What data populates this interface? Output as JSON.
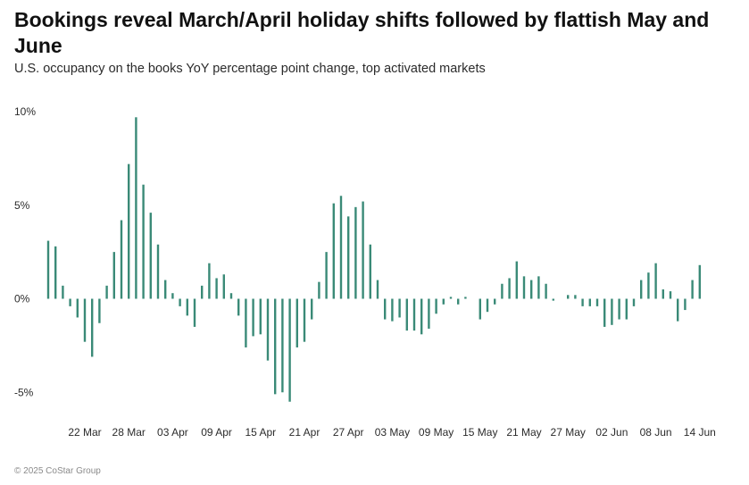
{
  "header": {
    "title": "Bookings reveal March/April holiday shifts followed by flattish May and June",
    "subtitle": "U.S. occupancy on the books YoY percentage point change, top activated markets"
  },
  "footer": {
    "copyright": "© 2025 CoStar Group"
  },
  "colors": {
    "bar": "#3a8a77",
    "text": "#2b2b2b"
  },
  "chart_data": {
    "type": "bar",
    "title": "Bookings reveal March/April holiday shifts followed by flattish May and June",
    "subtitle": "U.S. occupancy on the books YoY percentage point change, top activated markets",
    "xlabel": "",
    "ylabel": "",
    "ylim": [
      -5.8,
      10
    ],
    "yticks": [
      10,
      5,
      0,
      -5
    ],
    "ytick_labels": [
      "10%",
      "5%",
      "0%",
      "-5%"
    ],
    "grid": false,
    "legend": "none",
    "xtick_labels": [
      "22 Mar",
      "28 Mar",
      "03 Apr",
      "09 Apr",
      "15 Apr",
      "21 Apr",
      "27 Apr",
      "03 May",
      "09 May",
      "15 May",
      "21 May",
      "27 May",
      "02 Jun",
      "08 Jun",
      "14 Jun"
    ],
    "xtick_index": [
      5,
      11,
      17,
      23,
      29,
      35,
      41,
      47,
      53,
      59,
      65,
      71,
      77,
      83,
      89
    ],
    "first_date": "2025-03-17",
    "categories": [
      "17 Mar",
      "18 Mar",
      "19 Mar",
      "20 Mar",
      "21 Mar",
      "22 Mar",
      "23 Mar",
      "24 Mar",
      "25 Mar",
      "26 Mar",
      "27 Mar",
      "28 Mar",
      "29 Mar",
      "30 Mar",
      "31 Mar",
      "01 Apr",
      "02 Apr",
      "03 Apr",
      "04 Apr",
      "05 Apr",
      "06 Apr",
      "07 Apr",
      "08 Apr",
      "09 Apr",
      "10 Apr",
      "11 Apr",
      "12 Apr",
      "13 Apr",
      "14 Apr",
      "15 Apr",
      "16 Apr",
      "17 Apr",
      "18 Apr",
      "19 Apr",
      "20 Apr",
      "21 Apr",
      "22 Apr",
      "23 Apr",
      "24 Apr",
      "25 Apr",
      "26 Apr",
      "27 Apr",
      "28 Apr",
      "29 Apr",
      "30 Apr",
      "01 May",
      "02 May",
      "03 May",
      "04 May",
      "05 May",
      "06 May",
      "07 May",
      "08 May",
      "09 May",
      "10 May",
      "11 May",
      "12 May",
      "13 May",
      "14 May",
      "15 May",
      "16 May",
      "17 May",
      "18 May",
      "19 May",
      "20 May",
      "21 May",
      "22 May",
      "23 May",
      "24 May",
      "25 May",
      "26 May",
      "27 May",
      "28 May",
      "29 May",
      "30 May",
      "31 May",
      "01 Jun",
      "02 Jun",
      "03 Jun",
      "04 Jun",
      "05 Jun",
      "06 Jun",
      "07 Jun",
      "08 Jun",
      "09 Jun",
      "10 Jun",
      "11 Jun",
      "12 Jun",
      "13 Jun",
      "14 Jun"
    ],
    "values": [
      3.1,
      2.8,
      0.7,
      -0.4,
      -1.0,
      -2.3,
      -3.1,
      -1.3,
      0.7,
      2.5,
      4.2,
      7.2,
      9.7,
      6.1,
      4.6,
      2.9,
      1.0,
      0.3,
      -0.4,
      -0.9,
      -1.5,
      0.7,
      1.9,
      1.1,
      1.3,
      0.3,
      -0.9,
      -2.6,
      -2.0,
      -1.9,
      -3.3,
      -5.1,
      -5.0,
      -5.5,
      -2.6,
      -2.3,
      -1.1,
      0.9,
      2.5,
      5.1,
      5.5,
      4.4,
      4.9,
      5.2,
      2.9,
      1.0,
      -1.1,
      -1.2,
      -1.0,
      -1.7,
      -1.7,
      -1.9,
      -1.6,
      -0.8,
      -0.3,
      0.1,
      -0.3,
      0.1,
      0.0,
      -1.1,
      -0.7,
      -0.3,
      0.8,
      1.1,
      2.0,
      1.2,
      1.0,
      1.2,
      0.8,
      -0.1,
      0.0,
      0.2,
      0.2,
      -0.4,
      -0.4,
      -0.4,
      -1.5,
      -1.4,
      -1.1,
      -1.1,
      -0.4,
      1.0,
      1.4,
      1.9,
      0.5,
      0.4,
      -1.2,
      -0.6,
      1.0,
      1.8
    ]
  }
}
